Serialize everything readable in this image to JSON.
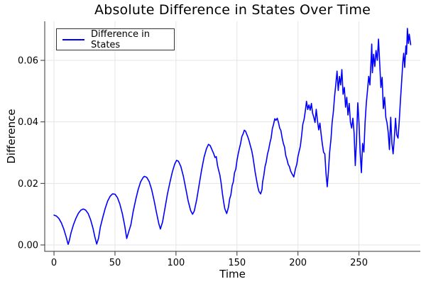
{
  "chart_data": {
    "type": "line",
    "title": "Absolute Difference in States Over Time",
    "xlabel": "Time",
    "ylabel": "Difference",
    "grid": true,
    "legend": {
      "position": "top-left",
      "entries": [
        {
          "label": "Difference in States",
          "color": "#0000ff"
        }
      ]
    },
    "xlim": [
      -7.6,
      300.3
    ],
    "ylim": [
      -0.00208,
      0.0727
    ],
    "x_ticks": {
      "values": [
        0,
        50,
        100,
        150,
        200,
        250
      ],
      "labels": [
        "0",
        "50",
        "100",
        "150",
        "200",
        "250"
      ]
    },
    "y_ticks": {
      "values": [
        0,
        0.02,
        0.04,
        0.06
      ],
      "labels": [
        "0.00",
        "0.02",
        "0.04",
        "0.06"
      ]
    },
    "series": [
      {
        "name": "Difference in States",
        "color": "#0000ff",
        "points": [
          [
            0,
            0.0097
          ],
          [
            2,
            0.0094
          ],
          [
            4,
            0.0086
          ],
          [
            6,
            0.0072
          ],
          [
            8,
            0.0052
          ],
          [
            10,
            0.0026
          ],
          [
            11,
            0.001
          ],
          [
            11.6,
            0.0002
          ],
          [
            12.4,
            0.0012
          ],
          [
            14,
            0.004
          ],
          [
            16,
            0.0066
          ],
          [
            18,
            0.0087
          ],
          [
            20,
            0.0103
          ],
          [
            22,
            0.0113
          ],
          [
            24,
            0.0117
          ],
          [
            26,
            0.0113
          ],
          [
            28,
            0.0102
          ],
          [
            30,
            0.0082
          ],
          [
            32,
            0.0054
          ],
          [
            33.5,
            0.0026
          ],
          [
            35,
            0.0003
          ],
          [
            36.5,
            0.0022
          ],
          [
            38,
            0.0058
          ],
          [
            40,
            0.009
          ],
          [
            42,
            0.0119
          ],
          [
            44,
            0.0143
          ],
          [
            46,
            0.0158
          ],
          [
            48,
            0.0166
          ],
          [
            50,
            0.0165
          ],
          [
            52,
            0.0154
          ],
          [
            54,
            0.0133
          ],
          [
            56,
            0.0102
          ],
          [
            58,
            0.0062
          ],
          [
            59.6,
            0.0021
          ],
          [
            61,
            0.004
          ],
          [
            63,
            0.0065
          ],
          [
            65,
            0.011
          ],
          [
            67,
            0.0148
          ],
          [
            69,
            0.018
          ],
          [
            71,
            0.0205
          ],
          [
            73,
            0.0219
          ],
          [
            74,
            0.0223
          ],
          [
            76,
            0.022
          ],
          [
            78,
            0.0206
          ],
          [
            80,
            0.0181
          ],
          [
            82,
            0.0146
          ],
          [
            84,
            0.0105
          ],
          [
            86,
            0.0068
          ],
          [
            87.2,
            0.0052
          ],
          [
            89,
            0.0075
          ],
          [
            91,
            0.012
          ],
          [
            93,
            0.0165
          ],
          [
            95,
            0.0203
          ],
          [
            97,
            0.0237
          ],
          [
            99,
            0.0263
          ],
          [
            100.5,
            0.0275
          ],
          [
            102,
            0.0272
          ],
          [
            104,
            0.0255
          ],
          [
            106,
            0.0224
          ],
          [
            108,
            0.0184
          ],
          [
            110,
            0.0143
          ],
          [
            112,
            0.0112
          ],
          [
            113.6,
            0.01
          ],
          [
            115,
            0.011
          ],
          [
            117,
            0.0148
          ],
          [
            119,
            0.0196
          ],
          [
            121,
            0.0243
          ],
          [
            123,
            0.0285
          ],
          [
            125,
            0.0313
          ],
          [
            126.6,
            0.0327
          ],
          [
            128,
            0.0323
          ],
          [
            130,
            0.0305
          ],
          [
            131,
            0.0296
          ],
          [
            132,
            0.0284
          ],
          [
            133,
            0.0287
          ],
          [
            134,
            0.0259
          ],
          [
            135,
            0.0242
          ],
          [
            136,
            0.0227
          ],
          [
            137,
            0.0202
          ],
          [
            138,
            0.0168
          ],
          [
            139,
            0.0141
          ],
          [
            140,
            0.0118
          ],
          [
            141.6,
            0.0102
          ],
          [
            143,
            0.0122
          ],
          [
            144,
            0.015
          ],
          [
            145,
            0.0163
          ],
          [
            146,
            0.0192
          ],
          [
            147,
            0.0205
          ],
          [
            148,
            0.0235
          ],
          [
            149,
            0.0246
          ],
          [
            150,
            0.0275
          ],
          [
            151,
            0.0296
          ],
          [
            152,
            0.0314
          ],
          [
            153,
            0.033
          ],
          [
            154,
            0.0352
          ],
          [
            155,
            0.0361
          ],
          [
            156,
            0.0373
          ],
          [
            157,
            0.037
          ],
          [
            158,
            0.036
          ],
          [
            159,
            0.035
          ],
          [
            160,
            0.0337
          ],
          [
            161,
            0.0322
          ],
          [
            162,
            0.0308
          ],
          [
            163,
            0.0288
          ],
          [
            164,
            0.0262
          ],
          [
            165,
            0.0235
          ],
          [
            166,
            0.0212
          ],
          [
            167,
            0.019
          ],
          [
            168,
            0.0174
          ],
          [
            169.4,
            0.0166
          ],
          [
            170.5,
            0.018
          ],
          [
            171,
            0.0205
          ],
          [
            172,
            0.0226
          ],
          [
            173,
            0.0255
          ],
          [
            174,
            0.027
          ],
          [
            175,
            0.0295
          ],
          [
            176,
            0.031
          ],
          [
            177,
            0.0332
          ],
          [
            178,
            0.0348
          ],
          [
            179,
            0.0378
          ],
          [
            180,
            0.0392
          ],
          [
            181,
            0.041
          ],
          [
            182,
            0.0405
          ],
          [
            183,
            0.0412
          ],
          [
            184,
            0.0398
          ],
          [
            185,
            0.038
          ],
          [
            186,
            0.0372
          ],
          [
            187,
            0.0349
          ],
          [
            188,
            0.033
          ],
          [
            189,
            0.0318
          ],
          [
            190,
            0.029
          ],
          [
            191,
            0.0278
          ],
          [
            192,
            0.0262
          ],
          [
            193,
            0.0255
          ],
          [
            194,
            0.024
          ],
          [
            195,
            0.0232
          ],
          [
            196.6,
            0.0221
          ],
          [
            198,
            0.0248
          ],
          [
            199,
            0.0262
          ],
          [
            200,
            0.0288
          ],
          [
            201,
            0.0305
          ],
          [
            202,
            0.0322
          ],
          [
            203,
            0.0355
          ],
          [
            204,
            0.0392
          ],
          [
            205,
            0.0408
          ],
          [
            206,
            0.0435
          ],
          [
            207,
            0.0467
          ],
          [
            208,
            0.044
          ],
          [
            209,
            0.0455
          ],
          [
            210,
            0.0438
          ],
          [
            211,
            0.046
          ],
          [
            212,
            0.0428
          ],
          [
            213,
            0.0415
          ],
          [
            214,
            0.0398
          ],
          [
            215,
            0.0441
          ],
          [
            216,
            0.0402
          ],
          [
            217,
            0.0374
          ],
          [
            218,
            0.0396
          ],
          [
            219,
            0.036
          ],
          [
            220,
            0.0328
          ],
          [
            221,
            0.0301
          ],
          [
            222,
            0.0296
          ],
          [
            223,
            0.0232
          ],
          [
            224,
            0.0189
          ],
          [
            225,
            0.024
          ],
          [
            226,
            0.0302
          ],
          [
            227,
            0.0342
          ],
          [
            228,
            0.0398
          ],
          [
            229,
            0.0432
          ],
          [
            230,
            0.0482
          ],
          [
            231,
            0.052
          ],
          [
            232,
            0.0565
          ],
          [
            233,
            0.0502
          ],
          [
            234,
            0.0548
          ],
          [
            235,
            0.052
          ],
          [
            236,
            0.057
          ],
          [
            237,
            0.049
          ],
          [
            238,
            0.0512
          ],
          [
            239,
            0.0448
          ],
          [
            240,
            0.048
          ],
          [
            241,
            0.0422
          ],
          [
            242,
            0.046
          ],
          [
            243,
            0.0398
          ],
          [
            244,
            0.038
          ],
          [
            245,
            0.0412
          ],
          [
            246,
            0.0365
          ],
          [
            247,
            0.0258
          ],
          [
            248,
            0.034
          ],
          [
            249,
            0.0462
          ],
          [
            250,
            0.0398
          ],
          [
            251,
            0.03
          ],
          [
            252,
            0.0235
          ],
          [
            253,
            0.033
          ],
          [
            254,
            0.0302
          ],
          [
            255,
            0.0398
          ],
          [
            256,
            0.046
          ],
          [
            257,
            0.0502
          ],
          [
            258,
            0.0548
          ],
          [
            259,
            0.052
          ],
          [
            260,
            0.0608
          ],
          [
            260.5,
            0.0653
          ],
          [
            261,
            0.056
          ],
          [
            262,
            0.062
          ],
          [
            263,
            0.058
          ],
          [
            264,
            0.0632
          ],
          [
            265,
            0.06
          ],
          [
            266,
            0.0669
          ],
          [
            267,
            0.059
          ],
          [
            268,
            0.0512
          ],
          [
            269,
            0.0545
          ],
          [
            270,
            0.0443
          ],
          [
            271,
            0.048
          ],
          [
            272,
            0.0415
          ],
          [
            273,
            0.0397
          ],
          [
            274,
            0.0365
          ],
          [
            275,
            0.031
          ],
          [
            276,
            0.0415
          ],
          [
            277,
            0.033
          ],
          [
            278,
            0.0296
          ],
          [
            279,
            0.0347
          ],
          [
            280,
            0.0412
          ],
          [
            281,
            0.0358
          ],
          [
            282,
            0.0347
          ],
          [
            283,
            0.0402
          ],
          [
            284,
            0.047
          ],
          [
            285,
            0.0531
          ],
          [
            286,
            0.0595
          ],
          [
            286.7,
            0.0623
          ],
          [
            287.5,
            0.0577
          ],
          [
            288.5,
            0.0647
          ],
          [
            289,
            0.062
          ],
          [
            289.7,
            0.0704
          ],
          [
            290.5,
            0.0655
          ],
          [
            291.2,
            0.0685
          ],
          [
            292.4,
            0.0651
          ]
        ]
      }
    ]
  },
  "colors": {
    "background": "#ffffff",
    "grid": "#e5e5e5",
    "axis": "#333333",
    "tick_text": "#000000",
    "line": "#0000ff",
    "legend_border": "#333333"
  }
}
